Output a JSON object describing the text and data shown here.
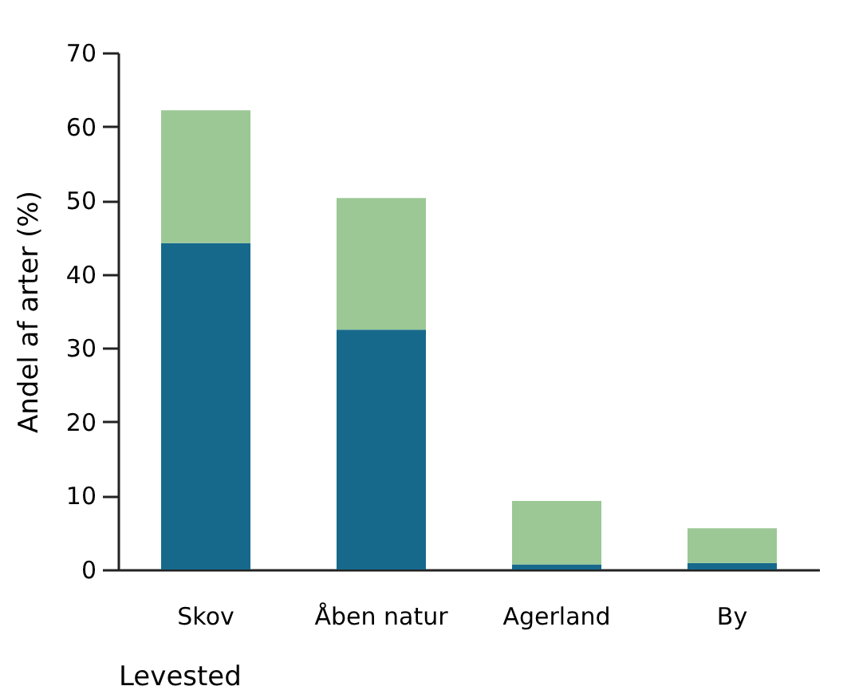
{
  "chart_data": {
    "type": "bar",
    "stacked": true,
    "xlabel": "Levested",
    "ylabel": "Andel af arter (%)",
    "categories": [
      "Skov",
      "Åben natur",
      "Agerland",
      "By"
    ],
    "series": [
      {
        "color": "#17698c",
        "values": [
          44.2,
          32.5,
          0.7,
          0.9
        ]
      },
      {
        "color": "#9bc895",
        "values": [
          18.0,
          17.8,
          8.6,
          4.7
        ]
      }
    ],
    "ylim": [
      0,
      70
    ],
    "yticks": [
      0,
      10,
      20,
      30,
      40,
      50,
      60,
      70
    ],
    "grid": false,
    "legend": false
  }
}
